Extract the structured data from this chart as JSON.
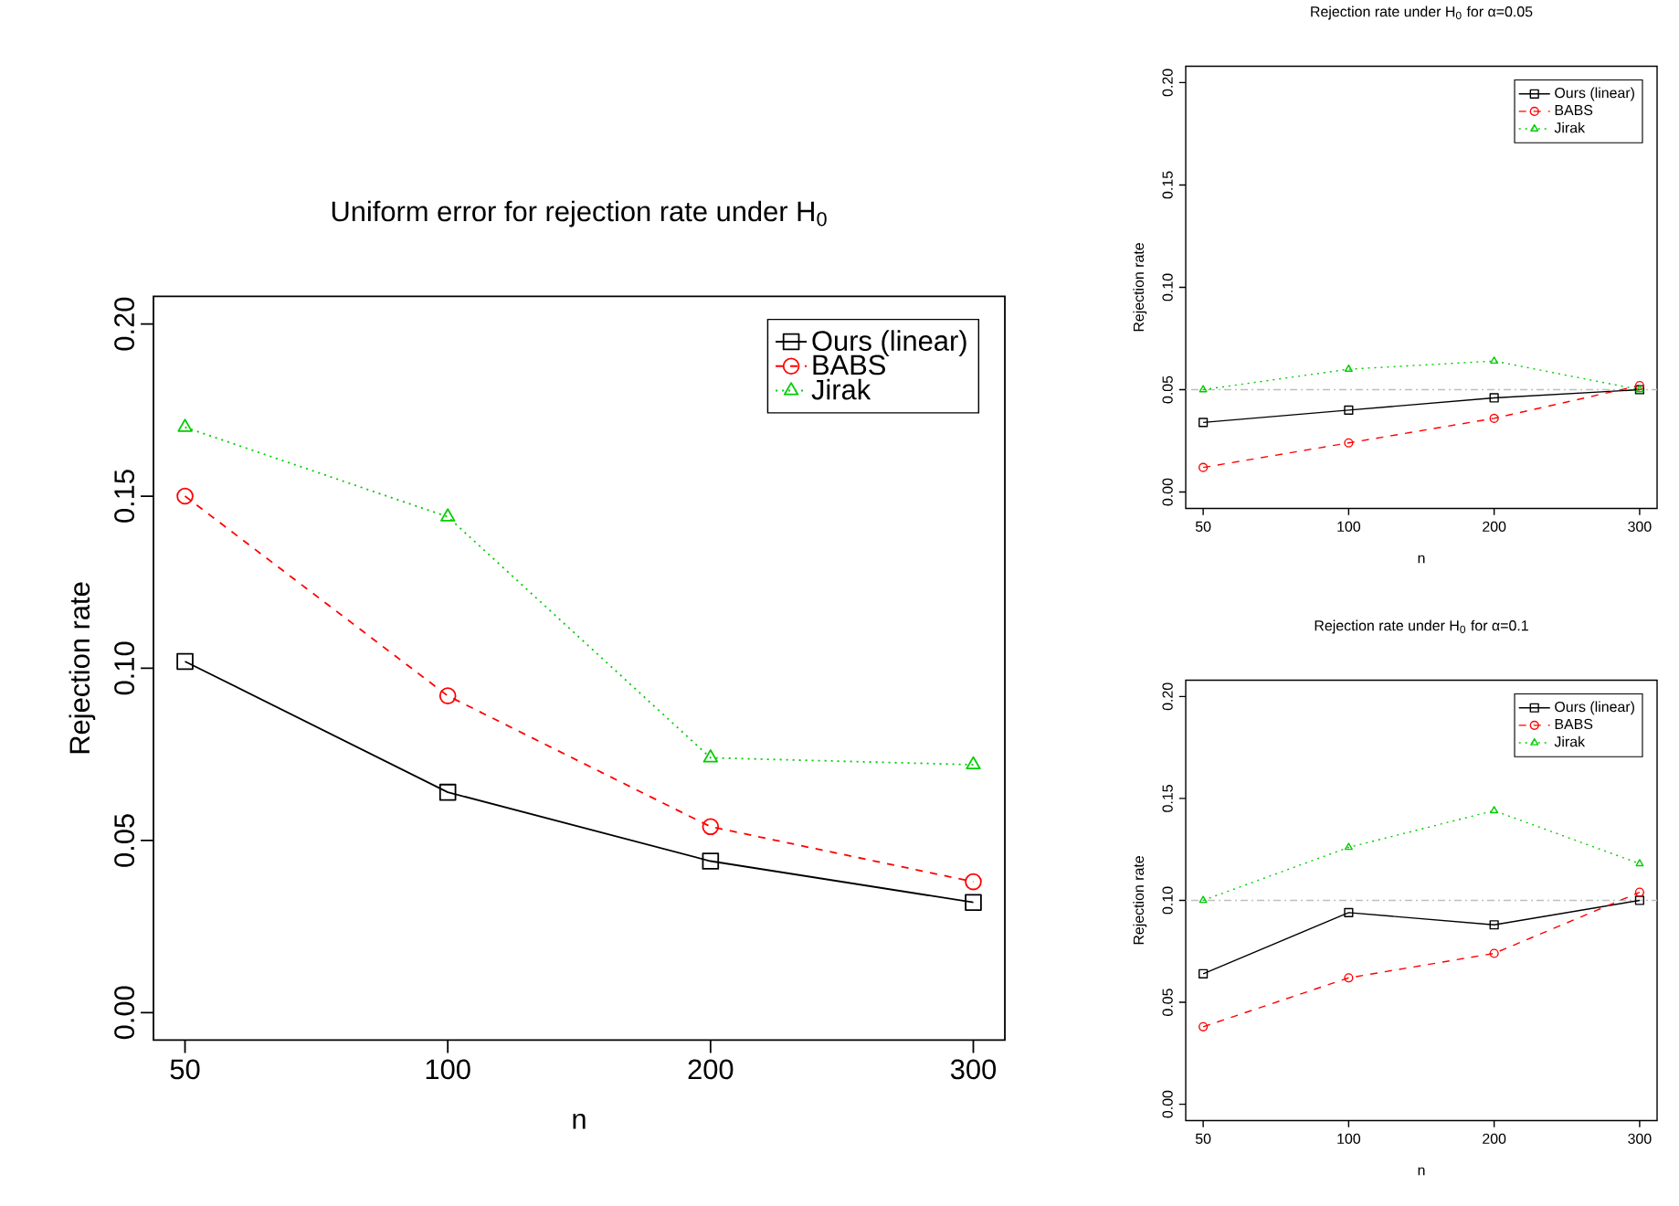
{
  "chart_data": [
    {
      "type": "line",
      "title": "Uniform error for rejection rate under H$_{0}$",
      "xlabel": "n",
      "ylabel": "Rejection rate",
      "categories": [
        "50",
        "100",
        "200",
        "300"
      ],
      "ylim": [
        -0.008,
        0.208
      ],
      "yticks": [
        {
          "value": 0,
          "label": "0.00"
        },
        {
          "value": 0.05,
          "label": "0.05"
        },
        {
          "value": 0.1,
          "label": "0.10"
        },
        {
          "value": 0.15,
          "label": "0.15"
        },
        {
          "value": 0.2,
          "label": "0.20"
        }
      ],
      "legend": "top right",
      "series": [
        {
          "name": "Ours (linear)",
          "color": "#000000",
          "marker": "square",
          "line_style": "solid",
          "values": [
            0.102,
            0.064,
            0.044,
            0.032
          ]
        },
        {
          "name": "BABS",
          "color": "#ff0000",
          "marker": "circle",
          "line_style": "dashed",
          "values": [
            0.15,
            0.092,
            0.054,
            0.038
          ]
        },
        {
          "name": "Jirak",
          "color": "#00cd00",
          "marker": "triangle",
          "line_style": "dotted",
          "values": [
            0.17,
            0.144,
            0.074,
            0.072
          ]
        }
      ]
    },
    {
      "type": "line",
      "title": "Rejection rate under H$_{0}$ for α=0.05",
      "xlabel": "n",
      "ylabel": "Rejection rate",
      "categories": [
        "50",
        "100",
        "200",
        "300"
      ],
      "ylim": [
        -0.008,
        0.208
      ],
      "yticks": [
        {
          "value": 0,
          "label": "0.00"
        },
        {
          "value": 0.05,
          "label": "0.05"
        },
        {
          "value": 0.1,
          "label": "0.10"
        },
        {
          "value": 0.15,
          "label": "0.15"
        },
        {
          "value": 0.2,
          "label": "0.20"
        }
      ],
      "legend": "top right",
      "ref_lines": [
        {
          "axis": "y",
          "value": 0.05,
          "color": "#bebebe",
          "line_style": "dashdot"
        }
      ],
      "series": [
        {
          "name": "Ours (linear)",
          "color": "#000000",
          "marker": "square",
          "line_style": "solid",
          "values": [
            0.034,
            0.04,
            0.046,
            0.05
          ]
        },
        {
          "name": "BABS",
          "color": "#ff0000",
          "marker": "circle",
          "line_style": "dashed",
          "values": [
            0.012,
            0.024,
            0.036,
            0.052
          ]
        },
        {
          "name": "Jirak",
          "color": "#00cd00",
          "marker": "triangle",
          "line_style": "dotted",
          "values": [
            0.05,
            0.06,
            0.064,
            0.05
          ]
        }
      ]
    },
    {
      "type": "line",
      "title": "Rejection rate under H$_{0}$ for α=0.1",
      "xlabel": "n",
      "ylabel": "Rejection rate",
      "categories": [
        "50",
        "100",
        "200",
        "300"
      ],
      "ylim": [
        -0.008,
        0.208
      ],
      "yticks": [
        {
          "value": 0,
          "label": "0.00"
        },
        {
          "value": 0.05,
          "label": "0.05"
        },
        {
          "value": 0.1,
          "label": "0.10"
        },
        {
          "value": 0.15,
          "label": "0.15"
        },
        {
          "value": 0.2,
          "label": "0.20"
        }
      ],
      "legend": "top right",
      "ref_lines": [
        {
          "axis": "y",
          "value": 0.1,
          "color": "#bebebe",
          "line_style": "dashdot"
        }
      ],
      "series": [
        {
          "name": "Ours (linear)",
          "color": "#000000",
          "marker": "square",
          "line_style": "solid",
          "values": [
            0.064,
            0.094,
            0.088,
            0.1
          ]
        },
        {
          "name": "BABS",
          "color": "#ff0000",
          "marker": "circle",
          "line_style": "dashed",
          "values": [
            0.038,
            0.062,
            0.074,
            0.104
          ]
        },
        {
          "name": "Jirak",
          "color": "#00cd00",
          "marker": "triangle",
          "line_style": "dotted",
          "values": [
            0.1,
            0.126,
            0.144,
            0.118
          ]
        }
      ]
    }
  ]
}
